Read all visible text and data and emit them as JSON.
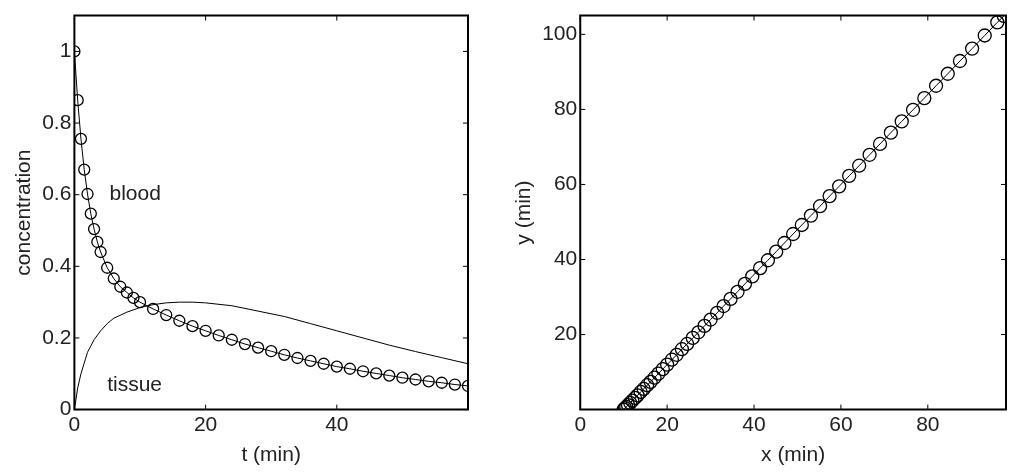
{
  "chart_data": [
    {
      "type": "line",
      "xlabel": "t (min)",
      "ylabel": "concentration",
      "xlim": [
        0,
        60
      ],
      "xticks": [
        0,
        20,
        40
      ],
      "ylim": [
        0,
        1.1
      ],
      "yticks": [
        0,
        0.2,
        0.4,
        0.6,
        0.8,
        1
      ],
      "grid": false,
      "legend": false,
      "series": [
        {
          "name": "blood",
          "color": "#000000",
          "marker": "circle",
          "x": [
            0,
            0.5,
            1,
            1.5,
            2,
            2.5,
            3,
            3.5,
            4,
            5,
            6,
            7,
            8,
            9,
            10,
            12,
            14,
            16,
            18,
            20,
            22,
            24,
            26,
            28,
            30,
            32,
            34,
            36,
            38,
            40,
            42,
            44,
            46,
            48,
            50,
            52,
            54,
            56,
            58,
            60
          ],
          "values": [
            1,
            0.864,
            0.756,
            0.67,
            0.602,
            0.547,
            0.504,
            0.468,
            0.44,
            0.396,
            0.366,
            0.343,
            0.327,
            0.312,
            0.3,
            0.281,
            0.264,
            0.248,
            0.233,
            0.22,
            0.207,
            0.195,
            0.183,
            0.173,
            0.163,
            0.153,
            0.144,
            0.136,
            0.128,
            0.12,
            0.114,
            0.107,
            0.101,
            0.095,
            0.089,
            0.084,
            0.079,
            0.075,
            0.07,
            0.066
          ]
        },
        {
          "name": "tissue",
          "color": "#000000",
          "marker": "none",
          "x": [
            0,
            0.5,
            1,
            2,
            3,
            4,
            5,
            6,
            8,
            10,
            12,
            14,
            16,
            18,
            20,
            24,
            28,
            32,
            36,
            40,
            44,
            48,
            52,
            56,
            60
          ],
          "values": [
            0,
            0.06,
            0.1,
            0.16,
            0.195,
            0.22,
            0.24,
            0.255,
            0.272,
            0.285,
            0.293,
            0.298,
            0.3,
            0.3,
            0.298,
            0.29,
            0.275,
            0.26,
            0.24,
            0.22,
            0.2,
            0.18,
            0.162,
            0.145,
            0.128
          ]
        }
      ]
    },
    {
      "type": "line",
      "xlabel": "x (min)",
      "ylabel": "y (min)",
      "xlim": [
        0,
        98
      ],
      "xticks": [
        0,
        20,
        40,
        60,
        80
      ],
      "ylim": [
        0,
        105
      ],
      "yticks": [
        20,
        40,
        60,
        80,
        100
      ],
      "grid": false,
      "legend": false,
      "series": [
        {
          "color": "#000000",
          "marker": "circle",
          "x": [
            10,
            10.3,
            10.6,
            11,
            11.5,
            12,
            12.6,
            13.2,
            13.9,
            14.6,
            15.4,
            16.2,
            17.1,
            18,
            19,
            20,
            21.1,
            22.2,
            23.4,
            24.6,
            25.9,
            27.2,
            28.6,
            30,
            31.5,
            33,
            34.6,
            36.2,
            37.9,
            39.6,
            41.4,
            43.2,
            45.1,
            47,
            49,
            51,
            53.1,
            55.2,
            57.4,
            59.6,
            61.9,
            64.2,
            66.6,
            69,
            71.5,
            74,
            76.6,
            79.2,
            81.9,
            84.6,
            87.4,
            90.2,
            93.1,
            96,
            97.5
          ],
          "values": [
            0,
            0.4,
            0.7,
            1.2,
            1.8,
            2.4,
            3.1,
            3.8,
            4.7,
            5.5,
            6.5,
            7.4,
            8.5,
            9.6,
            10.8,
            12,
            13.3,
            14.6,
            16.1,
            17.5,
            19.1,
            20.6,
            22.3,
            24,
            25.8,
            27.6,
            29.5,
            31.4,
            33.5,
            35.5,
            37.7,
            39.8,
            42.1,
            44.4,
            46.8,
            49.2,
            51.7,
            54.2,
            56.9,
            59.5,
            62.3,
            65,
            67.9,
            70.8,
            73.8,
            76.8,
            79.9,
            83,
            86.3,
            89.5,
            92.9,
            96.2,
            99.7,
            103.2,
            104.9
          ]
        }
      ]
    }
  ]
}
